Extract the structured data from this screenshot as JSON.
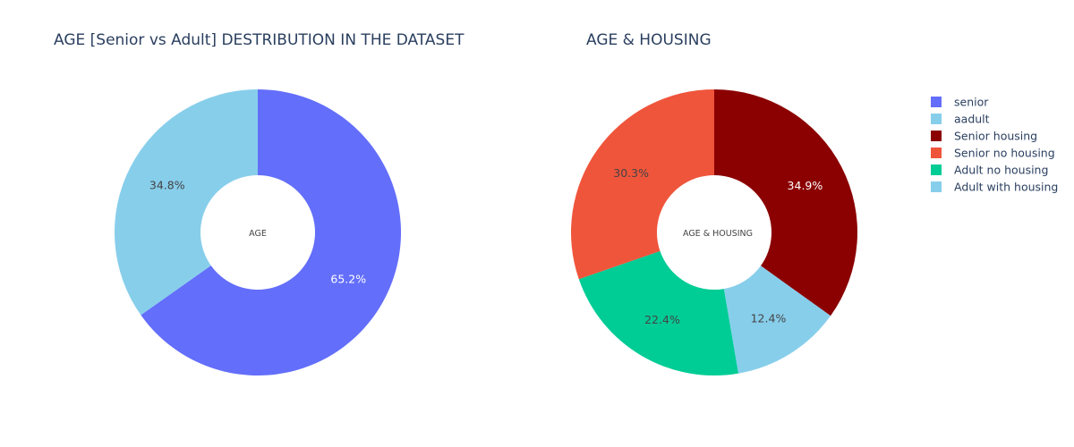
{
  "chart_data": [
    {
      "type": "pie",
      "hole": true,
      "title": "AGE [Senior vs Adult] DESTRIBUTION IN THE DATASET",
      "center_label": "AGE",
      "slices": [
        {
          "label": "senior",
          "percent": 65.2,
          "color": "#636efa",
          "text_color": "#ffffff"
        },
        {
          "label": "aadult",
          "percent": 34.8,
          "color": "#87ceeb",
          "text_color": "#444444"
        }
      ]
    },
    {
      "type": "pie",
      "hole": true,
      "title": "AGE & HOUSING",
      "center_label": "AGE & HOUSING",
      "slices": [
        {
          "label": "Senior housing",
          "percent": 34.9,
          "color": "#8b0000",
          "text_color": "#ffffff"
        },
        {
          "label": "Adult with housing",
          "percent": 12.4,
          "color": "#87ceeb",
          "text_color": "#444444"
        },
        {
          "label": "Adult no housing",
          "percent": 22.4,
          "color": "#00cc96",
          "text_color": "#444444"
        },
        {
          "label": "Senior no housing",
          "percent": 30.3,
          "color": "#ef553b",
          "text_color": "#444444"
        }
      ]
    }
  ],
  "legend": {
    "placement": "right",
    "items": [
      {
        "label": "senior",
        "color": "#636efa"
      },
      {
        "label": "aadult",
        "color": "#87ceeb"
      },
      {
        "label": "Senior housing",
        "color": "#8b0000"
      },
      {
        "label": "Senior no housing",
        "color": "#ef553b"
      },
      {
        "label": "Adult no housing",
        "color": "#00cc96"
      },
      {
        "label": "Adult with housing",
        "color": "#87ceeb"
      }
    ]
  }
}
